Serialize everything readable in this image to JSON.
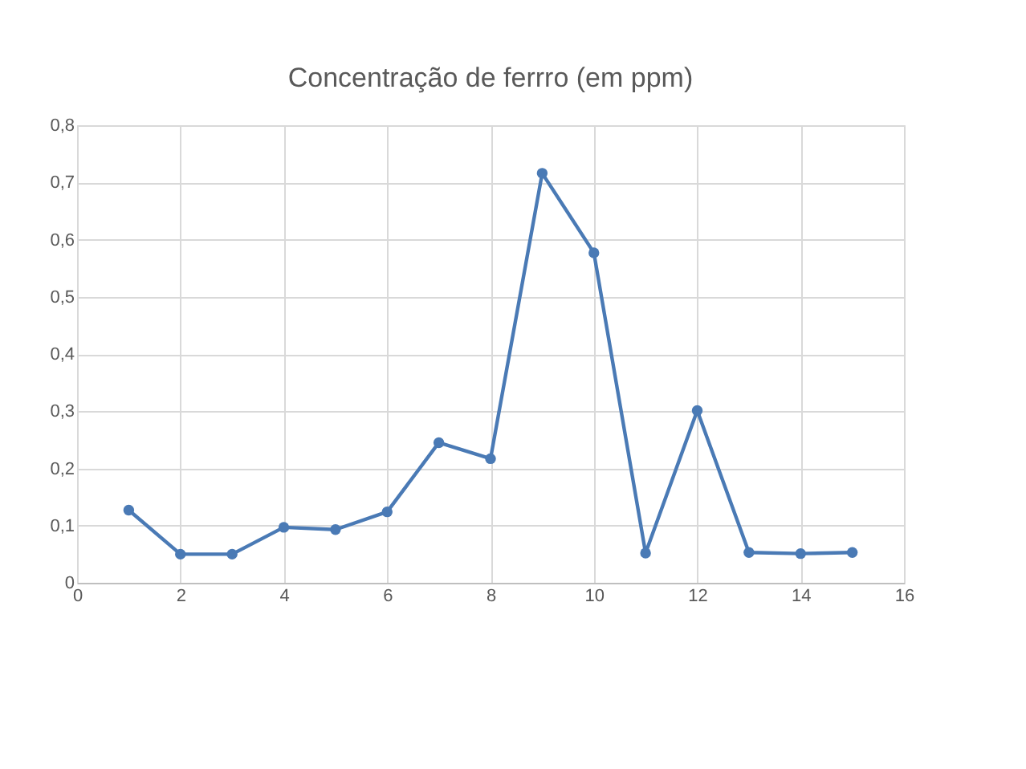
{
  "chart_data": {
    "type": "line",
    "title": "Concentração de ferrro (em ppm)",
    "x": [
      1,
      2,
      3,
      4,
      5,
      6,
      7,
      8,
      9,
      10,
      11,
      12,
      13,
      14,
      15
    ],
    "series": [
      {
        "color": "#4a7ab5",
        "values": [
          0.127,
          0.05,
          0.05,
          0.097,
          0.093,
          0.124,
          0.245,
          0.217,
          0.716,
          0.577,
          0.052,
          0.301,
          0.053,
          0.051,
          0.053
        ]
      }
    ],
    "xlim": [
      0,
      16
    ],
    "xticks": [
      0,
      2,
      4,
      6,
      8,
      10,
      12,
      14,
      16
    ],
    "ylim": [
      0,
      0.8
    ],
    "yticks": [
      0,
      {
        "value": 0.1,
        "label": "0,1"
      },
      {
        "value": 0.2,
        "label": "0,2"
      },
      {
        "value": 0.3,
        "label": "0,3"
      },
      {
        "value": 0.4,
        "label": "0,4"
      },
      {
        "value": 0.5,
        "label": "0,5"
      },
      {
        "value": 0.6,
        "label": "0,6"
      },
      {
        "value": 0.7,
        "label": "0,7"
      },
      {
        "value": 0.8,
        "label": "0,8"
      }
    ],
    "grid": true,
    "marker": "circle",
    "line_style": "solid"
  }
}
